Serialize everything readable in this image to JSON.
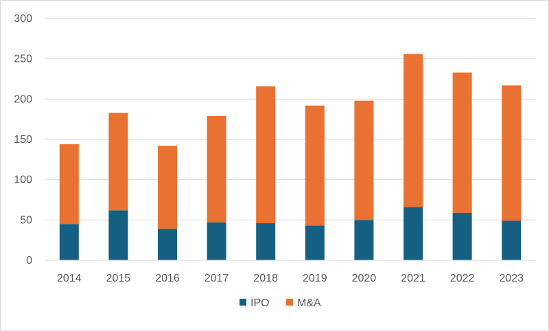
{
  "chart_data": {
    "type": "bar",
    "stacked": true,
    "title": "",
    "xlabel": "",
    "ylabel": "",
    "categories": [
      "2014",
      "2015",
      "2016",
      "2017",
      "2018",
      "2019",
      "2020",
      "2021",
      "2022",
      "2023"
    ],
    "series": [
      {
        "name": "IPO",
        "color": "#156082",
        "values": [
          45,
          62,
          39,
          47,
          46,
          43,
          50,
          66,
          59,
          49
        ]
      },
      {
        "name": "M&A",
        "color": "#E97132",
        "values": [
          99,
          121,
          103,
          132,
          170,
          149,
          148,
          190,
          174,
          168
        ]
      }
    ],
    "ylim": [
      0,
      300
    ],
    "yticks": [
      0,
      50,
      100,
      150,
      200,
      250,
      300
    ],
    "grid": true,
    "legend": "bottom"
  }
}
